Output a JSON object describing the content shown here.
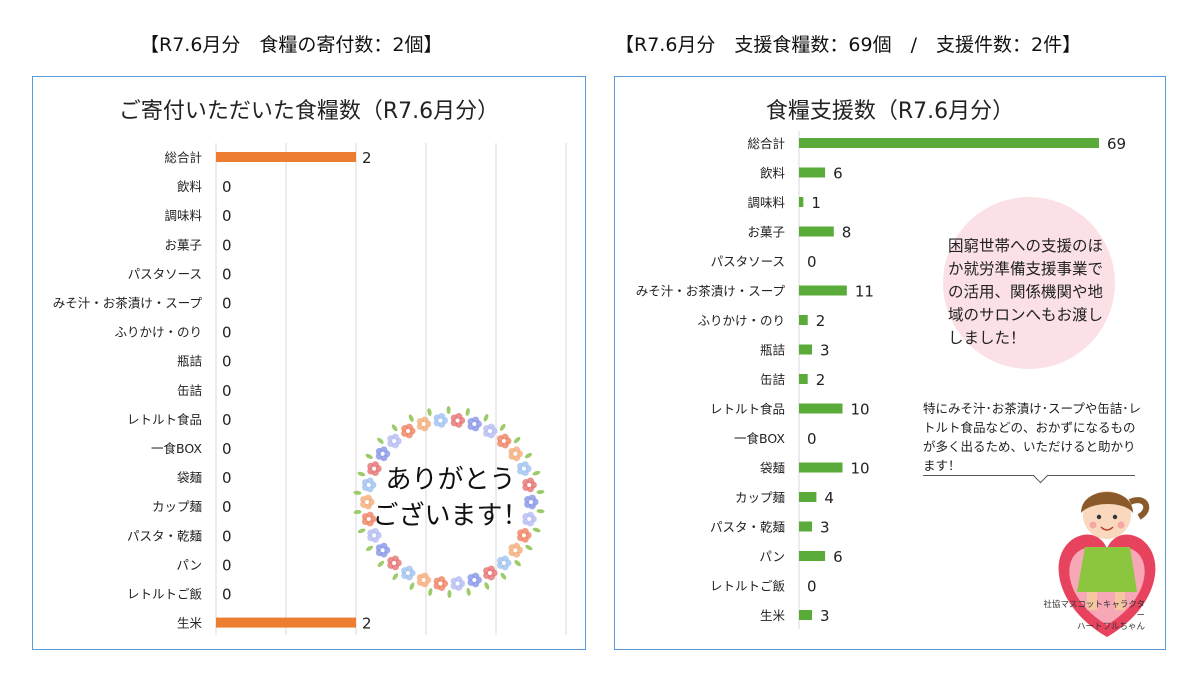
{
  "headings": {
    "left": "【R7.6月分　食糧の寄付数：2個】",
    "right": "【R7.6月分　支援食糧数：69個　/　支援件数：2件】"
  },
  "chart_data": [
    {
      "type": "bar",
      "orientation": "horizontal",
      "title": "ご寄付いただいた食糧数（R7.6月分）",
      "categories": [
        "総合計",
        "飲料",
        "調味料",
        "お菓子",
        "パスタソース",
        "みそ汁・お茶漬け・スープ",
        "ふりかけ・のり",
        "瓶詰",
        "缶詰",
        "レトルト食品",
        "一食BOX",
        "袋麺",
        "カップ麺",
        "パスタ・乾麺",
        "パン",
        "レトルトご飯",
        "生米"
      ],
      "values": [
        2,
        0,
        0,
        0,
        0,
        0,
        0,
        0,
        0,
        0,
        0,
        0,
        0,
        0,
        0,
        0,
        2
      ],
      "color": "#ed7d31",
      "grid": true,
      "xlim": [
        0,
        5
      ]
    },
    {
      "type": "bar",
      "orientation": "horizontal",
      "title": "食糧支援数（R7.6月分）",
      "categories": [
        "総合計",
        "飲料",
        "調味料",
        "お菓子",
        "パスタソース",
        "みそ汁・お茶漬け・スープ",
        "ふりかけ・のり",
        "瓶詰",
        "缶詰",
        "レトルト食品",
        "一食BOX",
        "袋麺",
        "カップ麺",
        "パスタ・乾麺",
        "パン",
        "レトルトご飯",
        "生米"
      ],
      "values": [
        69,
        6,
        1,
        8,
        0,
        11,
        2,
        3,
        2,
        10,
        0,
        10,
        4,
        3,
        6,
        0,
        3
      ],
      "color": "#5aab39",
      "grid": false,
      "xlim": [
        0,
        69
      ]
    }
  ],
  "left_panel": {
    "thanks": "ありがとう\nございます！"
  },
  "right_panel": {
    "bubble": "困窮世帯への支援のほか就労準備支援事業での活用、関係機関や地域のサロンへもお渡ししました！",
    "note": "特にみそ汁･お茶漬け･スープや缶詰･レトルト食品などの、おかずになるものが多く出るため、いただけると助かります！",
    "mascot_caption_1": "社協マスコットキャラクター",
    "mascot_caption_2": "ハートフルちゃん"
  },
  "colors": {
    "border": "#5b9bd5",
    "bar_left": "#ed7d31",
    "bar_right": "#5aab39",
    "bubble": "#fbe1e6"
  }
}
